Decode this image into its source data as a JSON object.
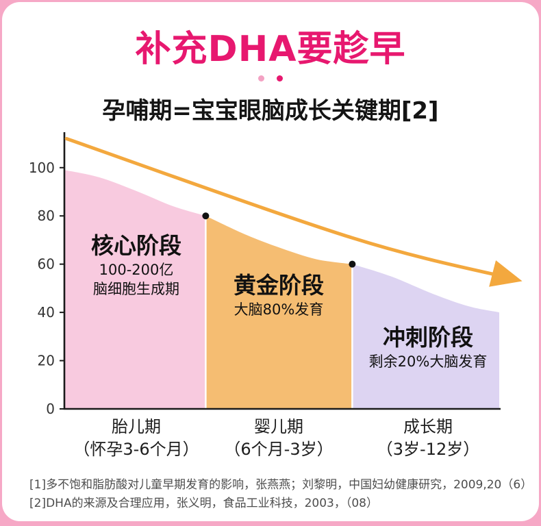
{
  "page": {
    "title": "补充DHA要趁早",
    "subtitle": "孕哺期=宝宝眼脑成长关键期[2]",
    "title_color": "#e7186f",
    "background": "#f6a8c6",
    "dot_colors": [
      "#f3a2c3",
      "#e7186f"
    ]
  },
  "chart_data": {
    "type": "area",
    "title": "",
    "xlabel": "",
    "ylabel": "",
    "ylim": [
      0,
      113
    ],
    "yticks": [
      0,
      20,
      40,
      60,
      80,
      100
    ],
    "grid": false,
    "axis_color": "#1a1a1a",
    "regions": [
      {
        "name": "核心阶段",
        "desc_lines": [
          "100-200亿",
          "脑细胞生成期"
        ],
        "color": "#f8cadf",
        "x_label": "胎儿期",
        "x_sublabel": "（怀孕3-6个月）",
        "top_points": [
          [
            0.0,
            99
          ],
          [
            0.08,
            96
          ],
          [
            0.17,
            90
          ],
          [
            0.25,
            84
          ],
          [
            0.325,
            80
          ]
        ]
      },
      {
        "name": "黄金阶段",
        "desc_lines": [
          "大脑80%发育"
        ],
        "color": "#f5bd72",
        "x_label": "婴儿期",
        "x_sublabel": "（6个月-3岁）",
        "top_points": [
          [
            0.325,
            80
          ],
          [
            0.42,
            72
          ],
          [
            0.5,
            66.5
          ],
          [
            0.58,
            62
          ],
          [
            0.662,
            60
          ]
        ]
      },
      {
        "name": "冲刺阶段",
        "desc_lines": [
          "剩余20%大脑发育"
        ],
        "color": "#ddd4f2",
        "x_label": "成长期",
        "x_sublabel": "（3岁-12岁）",
        "top_points": [
          [
            0.662,
            60
          ],
          [
            0.75,
            55
          ],
          [
            0.85,
            47.5
          ],
          [
            0.93,
            42.5
          ],
          [
            1.0,
            40
          ]
        ]
      }
    ],
    "markers": [
      [
        0.325,
        80
      ],
      [
        0.662,
        60
      ]
    ],
    "trend_arrow": {
      "color": "#f3a83e",
      "points": [
        [
          0.005,
          112
        ],
        [
          0.66,
          71
        ],
        [
          1.03,
          54
        ]
      ]
    }
  },
  "footnotes": [
    "[1]多不饱和脂肪酸对儿童早期发育的影响，张燕燕；刘黎明，中国妇幼健康研究，2009,20（6）",
    "[2]DHA的来源及合理应用，张义明，食品工业科技，2003，（08）"
  ]
}
